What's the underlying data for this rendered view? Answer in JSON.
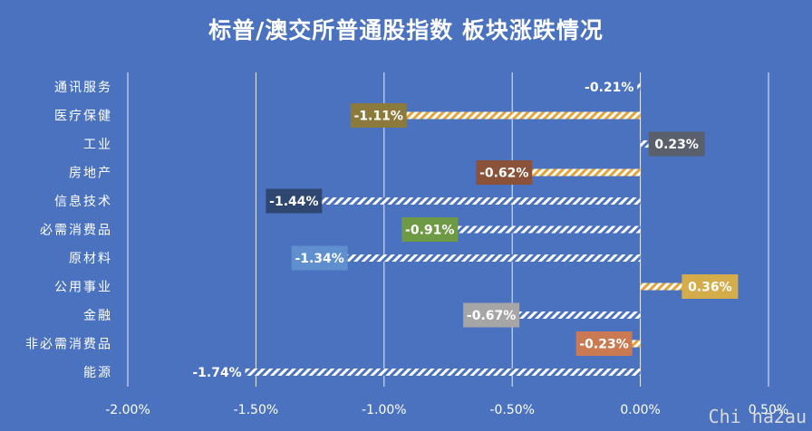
{
  "chart_data": {
    "type": "bar",
    "orientation": "horizontal",
    "title": "标普/澳交所普通股指数 板块涨跌情况",
    "categories": [
      "通讯服务",
      "医疗保健",
      "工业",
      "房地产",
      "信息技术",
      "必需消费品",
      "原材料",
      "公用事业",
      "金融",
      "非必需消费品",
      "能源"
    ],
    "values": [
      -0.21,
      -1.11,
      0.23,
      -0.62,
      -1.44,
      -0.91,
      -1.34,
      0.36,
      -0.67,
      -0.23,
      -1.74
    ],
    "data_labels": [
      "-0.21%",
      "-1.11%",
      "0.23%",
      "-0.62%",
      "-1.44%",
      "-0.91%",
      "-1.34%",
      "0.36%",
      "-0.67%",
      "-0.23%",
      "-1.74%"
    ],
    "label_colors": [
      "#4a72bf",
      "#8c7a3c",
      "#59606b",
      "#8a5238",
      "#2e4670",
      "#6e9a46",
      "#5f8fcf",
      "#d4ad4a",
      "#a6a6a6",
      "#c97a52",
      "#4a72bf"
    ],
    "bar_colors": [
      "#ffffff",
      "#e2a53a",
      "#ffffff",
      "#e2a53a",
      "#ffffff",
      "#ffffff",
      "#ffffff",
      "#e2a53a",
      "#ffffff",
      "#e2a53a",
      "#ffffff"
    ],
    "xlim": [
      -2.0,
      0.5
    ],
    "ticks": [
      -2.0,
      -1.5,
      -1.0,
      -0.5,
      0.0,
      0.5
    ],
    "tick_labels": [
      "-2.00%",
      "-1.50%",
      "-1.00%",
      "-0.50%",
      "0.00%",
      "0.50%"
    ],
    "grid": true
  },
  "watermark": "Chi na2au"
}
